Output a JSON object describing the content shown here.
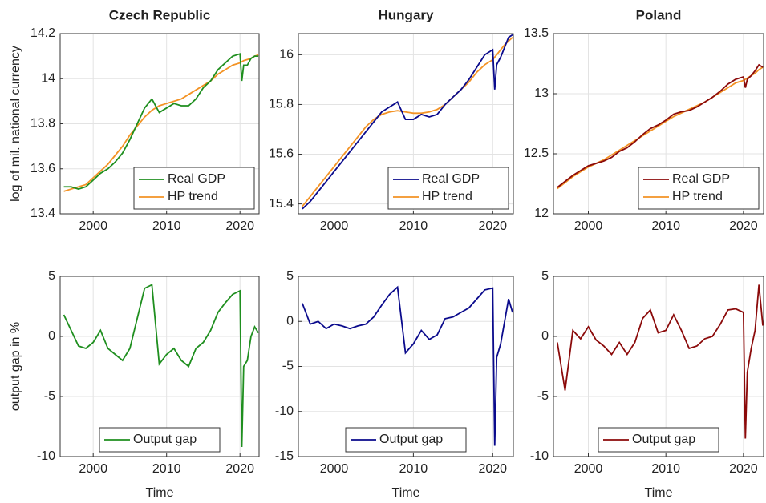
{
  "chart_data": [
    {
      "type": "line",
      "title": "Czech Republic",
      "ylabel": "log of mil. national currency",
      "x": [
        1996,
        1997,
        1998,
        1999,
        2000,
        2001,
        2002,
        2003,
        2004,
        2005,
        2006,
        2007,
        2008,
        2009,
        2010,
        2011,
        2012,
        2013,
        2014,
        2015,
        2016,
        2017,
        2018,
        2019,
        2020,
        2020.25,
        2020.5,
        2021,
        2021.5,
        2022,
        2022.5
      ],
      "series": [
        {
          "name": "Real GDP",
          "color": "#1f8f1f",
          "values": [
            13.52,
            13.52,
            13.51,
            13.52,
            13.55,
            13.58,
            13.6,
            13.63,
            13.67,
            13.73,
            13.8,
            13.87,
            13.91,
            13.85,
            13.87,
            13.89,
            13.88,
            13.88,
            13.91,
            13.96,
            13.99,
            14.04,
            14.07,
            14.1,
            14.11,
            13.99,
            14.06,
            14.06,
            14.09,
            14.1,
            14.1
          ]
        },
        {
          "name": "HP trend",
          "color": "#f39325",
          "values": [
            13.5,
            13.51,
            13.52,
            13.53,
            13.56,
            13.59,
            13.62,
            13.66,
            13.7,
            13.75,
            13.79,
            13.83,
            13.86,
            13.88,
            13.89,
            13.9,
            13.91,
            13.93,
            13.95,
            13.97,
            13.99,
            14.02,
            14.04,
            14.06,
            14.07,
            14.075,
            14.08,
            14.085,
            14.09,
            14.1,
            14.105
          ]
        }
      ],
      "xlim": [
        1995.5,
        2022.6
      ],
      "ylim": [
        13.4,
        14.2
      ],
      "xticks": [
        2000,
        2010,
        2020
      ],
      "yticks": [
        13.4,
        13.6,
        13.8,
        14,
        14.2
      ],
      "grid": true,
      "legend": "lower right"
    },
    {
      "type": "line",
      "title": "Hungary",
      "x": [
        1996,
        1997,
        1998,
        1999,
        2000,
        2001,
        2002,
        2003,
        2004,
        2005,
        2006,
        2007,
        2008,
        2009,
        2010,
        2011,
        2012,
        2013,
        2014,
        2015,
        2016,
        2017,
        2018,
        2019,
        2020,
        2020.25,
        2020.5,
        2021,
        2021.5,
        2022,
        2022.5
      ],
      "series": [
        {
          "name": "Real GDP",
          "color": "#0a0a8c",
          "values": [
            15.38,
            15.41,
            15.45,
            15.49,
            15.53,
            15.57,
            15.61,
            15.65,
            15.69,
            15.73,
            15.77,
            15.79,
            15.81,
            15.74,
            15.74,
            15.76,
            15.75,
            15.76,
            15.8,
            15.83,
            15.86,
            15.9,
            15.95,
            16.0,
            16.02,
            15.86,
            15.96,
            15.99,
            16.03,
            16.07,
            16.08
          ]
        },
        {
          "name": "HP trend",
          "color": "#f39325",
          "values": [
            15.39,
            15.43,
            15.47,
            15.51,
            15.55,
            15.59,
            15.63,
            15.67,
            15.71,
            15.74,
            15.76,
            15.77,
            15.775,
            15.77,
            15.765,
            15.765,
            15.77,
            15.78,
            15.8,
            15.83,
            15.86,
            15.89,
            15.93,
            15.96,
            15.98,
            15.99,
            16.0,
            16.02,
            16.04,
            16.055,
            16.07
          ]
        }
      ],
      "xlim": [
        1995.5,
        2022.6
      ],
      "ylim": [
        15.36,
        16.085
      ],
      "xticks": [
        2000,
        2010,
        2020
      ],
      "yticks": [
        15.4,
        15.6,
        15.8,
        16
      ],
      "grid": true,
      "legend": "lower right"
    },
    {
      "type": "line",
      "title": "Poland",
      "x": [
        1996,
        1997,
        1998,
        1999,
        2000,
        2001,
        2002,
        2003,
        2004,
        2005,
        2006,
        2007,
        2008,
        2009,
        2010,
        2011,
        2012,
        2013,
        2014,
        2015,
        2016,
        2017,
        2018,
        2019,
        2020,
        2020.25,
        2020.5,
        2021,
        2021.5,
        2022,
        2022.5
      ],
      "series": [
        {
          "name": "Real GDP",
          "color": "#8b0a0a",
          "values": [
            12.22,
            12.27,
            12.32,
            12.36,
            12.4,
            12.42,
            12.44,
            12.47,
            12.52,
            12.55,
            12.6,
            12.66,
            12.71,
            12.74,
            12.78,
            12.83,
            12.85,
            12.86,
            12.89,
            12.93,
            12.97,
            13.02,
            13.08,
            13.12,
            13.14,
            13.05,
            13.12,
            13.15,
            13.19,
            13.24,
            13.22
          ]
        },
        {
          "name": "HP trend",
          "color": "#f39325",
          "values": [
            12.21,
            12.26,
            12.31,
            12.35,
            12.39,
            12.42,
            12.45,
            12.49,
            12.53,
            12.57,
            12.61,
            12.65,
            12.69,
            12.73,
            12.77,
            12.81,
            12.84,
            12.87,
            12.9,
            12.93,
            12.97,
            13.01,
            13.05,
            13.09,
            13.11,
            13.12,
            13.13,
            13.15,
            13.17,
            13.2,
            13.22
          ]
        }
      ],
      "xlim": [
        1995.5,
        2022.6
      ],
      "ylim": [
        12,
        13.5
      ],
      "xticks": [
        2000,
        2010,
        2020
      ],
      "yticks": [
        12,
        12.5,
        13,
        13.5
      ],
      "grid": true,
      "legend": "lower right"
    },
    {
      "type": "line",
      "ylabel": "output gap in %",
      "xlabel": "Time",
      "x": [
        1996,
        1997,
        1998,
        1999,
        2000,
        2001,
        2002,
        2003,
        2004,
        2005,
        2006,
        2007,
        2008,
        2009,
        2010,
        2011,
        2012,
        2013,
        2014,
        2015,
        2016,
        2017,
        2018,
        2019,
        2020,
        2020.25,
        2020.5,
        2021,
        2021.5,
        2022,
        2022.5
      ],
      "series": [
        {
          "name": "Output gap",
          "color": "#1f8f1f",
          "values": [
            1.8,
            0.5,
            -0.8,
            -1.0,
            -0.5,
            0.5,
            -1.0,
            -1.5,
            -2.0,
            -1.0,
            1.5,
            4.0,
            4.3,
            -2.3,
            -1.5,
            -1.0,
            -2.0,
            -2.5,
            -1.0,
            -0.5,
            0.5,
            2.0,
            2.8,
            3.5,
            3.8,
            -9.2,
            -2.5,
            -2.0,
            0.0,
            0.8,
            0.3
          ]
        }
      ],
      "xlim": [
        1995.5,
        2022.6
      ],
      "ylim": [
        -10,
        5
      ],
      "xticks": [
        2000,
        2010,
        2020
      ],
      "yticks": [
        -10,
        -5,
        0,
        5
      ],
      "grid": true,
      "legend": "lower center"
    },
    {
      "type": "line",
      "xlabel": "Time",
      "x": [
        1996,
        1997,
        1998,
        1999,
        2000,
        2001,
        2002,
        2003,
        2004,
        2005,
        2006,
        2007,
        2008,
        2009,
        2010,
        2011,
        2012,
        2013,
        2014,
        2015,
        2016,
        2017,
        2018,
        2019,
        2020,
        2020.25,
        2020.5,
        2021,
        2021.5,
        2022,
        2022.5
      ],
      "series": [
        {
          "name": "Output gap",
          "color": "#0a0a8c",
          "values": [
            2.0,
            -0.3,
            0,
            -0.8,
            -0.3,
            -0.5,
            -0.8,
            -0.5,
            -0.3,
            0.5,
            1.8,
            3.0,
            3.8,
            -3.5,
            -2.5,
            -1.0,
            -2.0,
            -1.5,
            0.3,
            0.5,
            1.0,
            1.5,
            2.5,
            3.5,
            3.7,
            -13.8,
            -4.0,
            -2.5,
            0,
            2.5,
            1.0
          ]
        }
      ],
      "xlim": [
        1995.5,
        2022.6
      ],
      "ylim": [
        -15,
        5
      ],
      "xticks": [
        2000,
        2010,
        2020
      ],
      "yticks": [
        -15,
        -10,
        -5,
        0,
        5
      ],
      "grid": true,
      "legend": "lower center"
    },
    {
      "type": "line",
      "xlabel": "Time",
      "x": [
        1996,
        1997,
        1998,
        1999,
        2000,
        2001,
        2002,
        2003,
        2004,
        2005,
        2006,
        2007,
        2008,
        2009,
        2010,
        2011,
        2012,
        2013,
        2014,
        2015,
        2016,
        2017,
        2018,
        2019,
        2020,
        2020.25,
        2020.5,
        2021,
        2021.5,
        2022,
        2022.5
      ],
      "series": [
        {
          "name": "Output gap",
          "color": "#8b0a0a",
          "values": [
            -0.5,
            -4.5,
            0.5,
            -0.2,
            0.8,
            -0.3,
            -0.8,
            -1.5,
            -0.5,
            -1.5,
            -0.5,
            1.5,
            2.2,
            0.3,
            0.5,
            1.8,
            0.5,
            -1.0,
            -0.8,
            -0.2,
            0.0,
            1.0,
            2.2,
            2.3,
            2.0,
            -8.5,
            -3.0,
            -1.0,
            0.5,
            4.3,
            0.9
          ]
        }
      ],
      "xlim": [
        1995.5,
        2022.6
      ],
      "ylim": [
        -10,
        5
      ],
      "xticks": [
        2000,
        2010,
        2020
      ],
      "yticks": [
        -10,
        -5,
        0,
        5
      ],
      "grid": true,
      "legend": "lower center"
    }
  ]
}
